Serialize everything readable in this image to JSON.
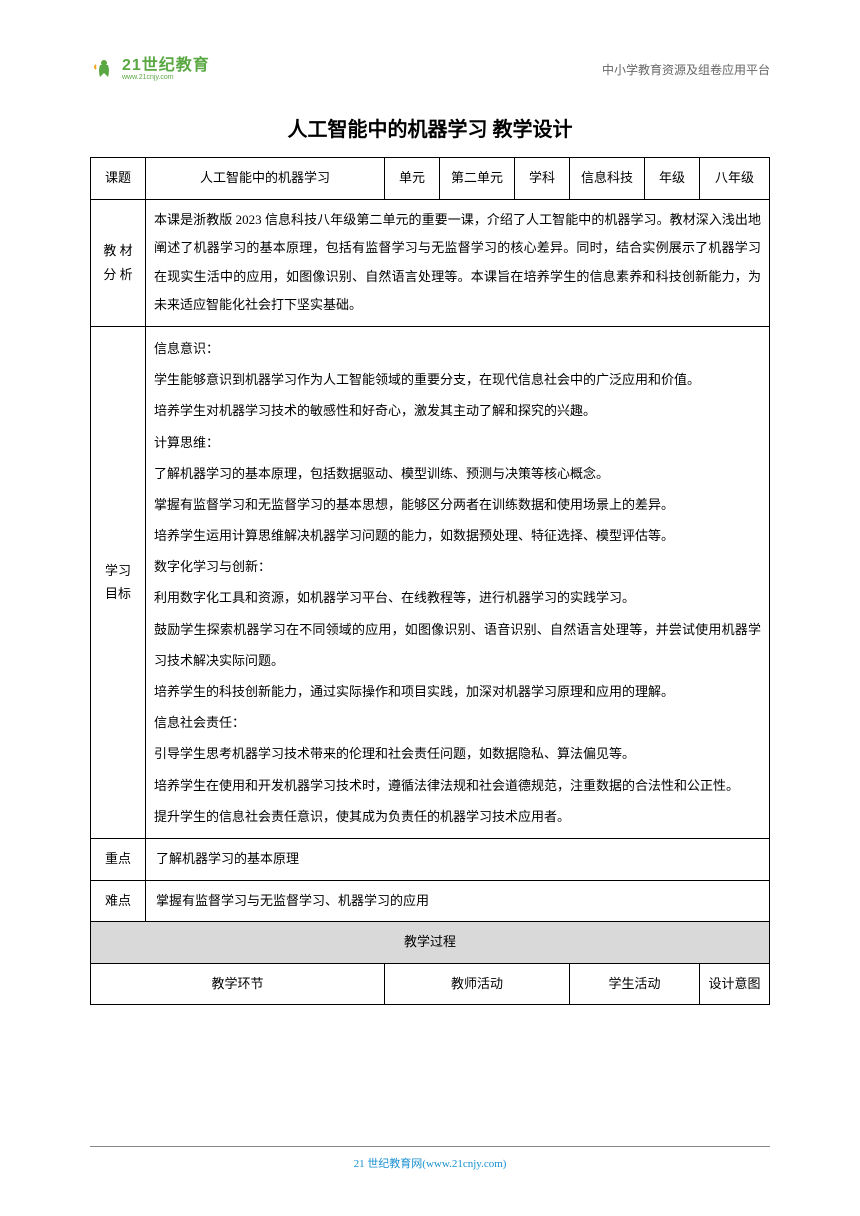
{
  "header": {
    "logo_main": "21世纪教育",
    "logo_sub": "www.21cnjy.com",
    "right_text": "中小学教育资源及组卷应用平台"
  },
  "title": "人工智能中的机器学习 教学设计",
  "info_row": {
    "labels": [
      "课题",
      "单元",
      "学科",
      "年级"
    ],
    "values": [
      "人工智能中的机器学习",
      "第二单元",
      "信息科技",
      "八年级"
    ]
  },
  "sections": {
    "material_label": "教 材\n分 析",
    "material_content": "本课是浙教版 2023 信息科技八年级第二单元的重要一课，介绍了人工智能中的机器学习。教材深入浅出地阐述了机器学习的基本原理，包括有监督学习与无监督学习的核心差异。同时，结合实例展示了机器学习在现实生活中的应用，如图像识别、自然语言处理等。本课旨在培养学生的信息素养和科技创新能力，为未来适应智能化社会打下坚实基础。",
    "objective_label": "学习\n目标",
    "objective_lines": [
      "信息意识：",
      "学生能够意识到机器学习作为人工智能领域的重要分支，在现代信息社会中的广泛应用和价值。",
      "培养学生对机器学习技术的敏感性和好奇心，激发其主动了解和探究的兴趣。",
      "计算思维：",
      "了解机器学习的基本原理，包括数据驱动、模型训练、预测与决策等核心概念。",
      "掌握有监督学习和无监督学习的基本思想，能够区分两者在训练数据和使用场景上的差异。",
      "培养学生运用计算思维解决机器学习问题的能力，如数据预处理、特征选择、模型评估等。",
      "数字化学习与创新：",
      "利用数字化工具和资源，如机器学习平台、在线教程等，进行机器学习的实践学习。",
      "鼓励学生探索机器学习在不同领域的应用，如图像识别、语音识别、自然语言处理等，并尝试使用机器学习技术解决实际问题。",
      "培养学生的科技创新能力，通过实际操作和项目实践，加深对机器学习原理和应用的理解。",
      "信息社会责任：",
      "引导学生思考机器学习技术带来的伦理和社会责任问题，如数据隐私、算法偏见等。",
      "培养学生在使用和开发机器学习技术时，遵循法律法规和社会道德规范，注重数据的合法性和公正性。",
      "提升学生的信息社会责任意识，使其成为负责任的机器学习技术应用者。"
    ],
    "key_label": "重点",
    "key_content": "了解机器学习的基本原理",
    "difficult_label": "难点",
    "difficult_content": "掌握有监督学习与无监督学习、机器学习的应用",
    "process_header": "教学过程",
    "process_cols": [
      "教学环节",
      "教师活动",
      "学生活动",
      "设计意图"
    ]
  },
  "footer": {
    "text": "21 世纪教育网(www.21cnjy.com)"
  },
  "colors": {
    "logo_green": "#5aa843",
    "header_gray": "#666666",
    "footer_blue": "#1890d0",
    "section_bg": "#d9d9d9",
    "border": "#000000"
  }
}
